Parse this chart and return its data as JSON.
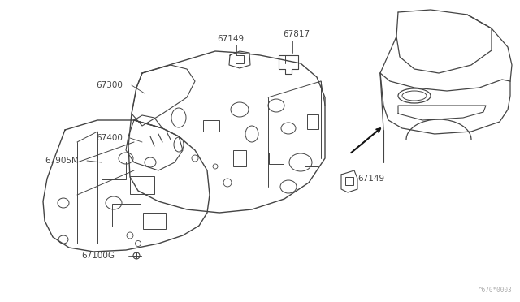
{
  "background_color": "#ffffff",
  "line_color": "#444444",
  "text_color": "#444444",
  "fig_width": 6.4,
  "fig_height": 3.72,
  "dpi": 100,
  "watermark": "^670*0003",
  "font_size": 7.0
}
